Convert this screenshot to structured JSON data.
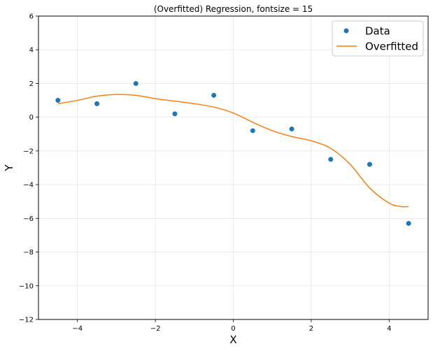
{
  "chart_data": {
    "type": "line",
    "title": "(Overfitted) Regression, fontsize = 15",
    "xlabel": "X",
    "ylabel": "Y",
    "xlim": [
      -5,
      5
    ],
    "ylim": [
      -12,
      6
    ],
    "xticks": [
      -4,
      -2,
      0,
      2,
      4
    ],
    "yticks": [
      -12,
      -10,
      -8,
      -6,
      -4,
      -2,
      0,
      2,
      4,
      6
    ],
    "grid": true,
    "legend_position": "top-right",
    "colors": {
      "data": "#1f77b4",
      "fit": "#ff7f0e",
      "grid": "#e6e6e6"
    },
    "series": [
      {
        "name": "Data",
        "kind": "scatter",
        "x": [
          -4.5,
          -3.5,
          -2.5,
          -1.5,
          -0.5,
          0.5,
          1.5,
          2.5,
          3.5,
          4.5
        ],
        "y": [
          1.0,
          0.8,
          2.0,
          0.2,
          1.3,
          -0.8,
          -0.7,
          -2.5,
          -2.8,
          -6.3
        ]
      },
      {
        "name": "Overfitted",
        "kind": "line",
        "x": [
          -4.5,
          -4.0,
          -3.5,
          -3.0,
          -2.5,
          -2.0,
          -1.5,
          -1.0,
          -0.5,
          0.0,
          0.5,
          1.0,
          1.5,
          2.0,
          2.5,
          3.0,
          3.5,
          4.0,
          4.3,
          4.5
        ],
        "y": [
          0.8,
          1.0,
          1.25,
          1.35,
          1.3,
          1.1,
          0.95,
          0.8,
          0.6,
          0.25,
          -0.3,
          -0.8,
          -1.15,
          -1.4,
          -1.85,
          -2.8,
          -4.2,
          -5.1,
          -5.3,
          -5.3
        ]
      }
    ]
  }
}
